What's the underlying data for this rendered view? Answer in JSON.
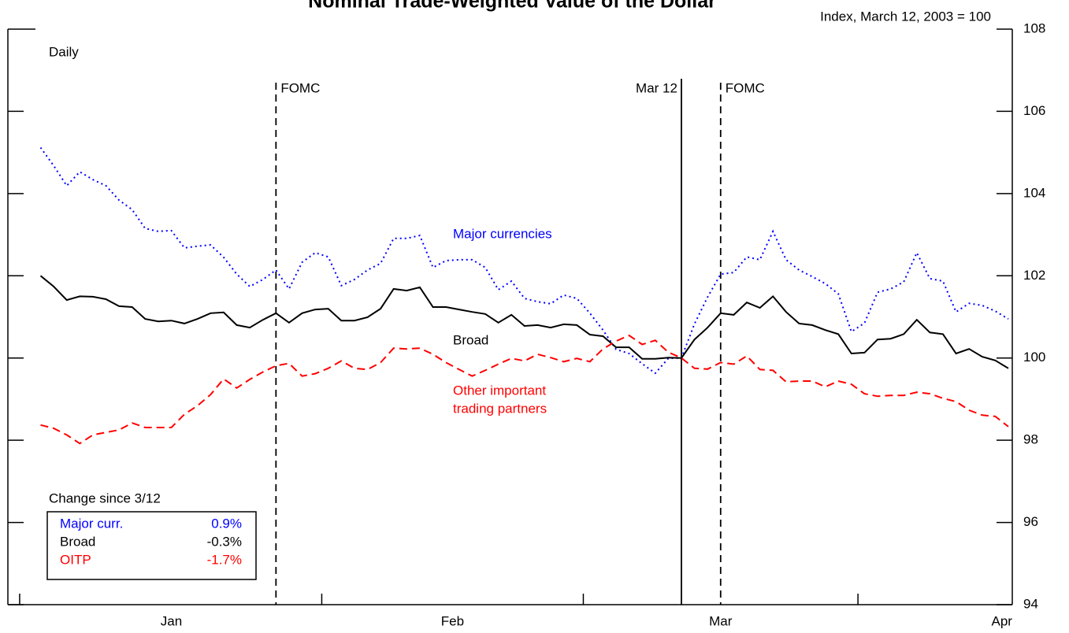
{
  "chart_data": {
    "type": "line",
    "title": "Nominal Trade-Weighted Value of the Dollar",
    "subtitle": "Daily",
    "y_axis_label": "Index, March 12, 2003 = 100",
    "x": [
      0,
      1,
      2,
      3,
      4,
      5,
      6,
      7,
      8,
      9,
      10,
      11,
      12,
      13,
      14,
      15,
      16,
      17,
      18,
      19,
      20,
      21,
      22,
      23,
      24,
      25,
      26,
      27,
      28,
      29,
      30,
      31,
      32,
      33,
      34,
      35,
      36,
      37,
      38,
      39,
      40,
      41,
      42,
      43,
      44,
      45,
      46,
      47,
      48,
      49,
      50,
      51,
      52,
      53,
      54,
      55,
      56,
      57,
      58,
      59,
      60,
      61,
      62,
      63,
      64,
      65,
      66,
      67,
      68,
      69,
      70,
      71,
      72,
      73,
      74
    ],
    "xlim": [
      -2.5,
      74.3
    ],
    "xticks": [
      -1.6,
      21.5,
      41.5,
      62.5
    ],
    "x_labels": [
      {
        "value": 10,
        "label": "Jan"
      },
      {
        "value": 31.5,
        "label": "Feb"
      },
      {
        "value": 52,
        "label": "Mar"
      },
      {
        "value": 73.5,
        "label": "Apr"
      }
    ],
    "ylim": [
      94,
      108
    ],
    "yticks": [
      94,
      96,
      98,
      100,
      102,
      104,
      106,
      108
    ],
    "events": [
      {
        "x": 18,
        "label": "FOMC",
        "style": "dashed",
        "label_side": "right"
      },
      {
        "x": 49,
        "label": "Mar 12",
        "style": "solid",
        "label_side": "left"
      },
      {
        "x": 52,
        "label": "FOMC",
        "style": "dashed",
        "label_side": "right"
      }
    ],
    "summary_title": "Change since 3/12",
    "series": [
      {
        "name": "Major curr.",
        "label_lines": [
          "Major currencies"
        ],
        "color": "#0000ff",
        "dash": "dotted",
        "change": 0.9,
        "change_label": "0.9%",
        "values": [
          105.12,
          104.68,
          104.19,
          104.53,
          104.34,
          104.19,
          103.84,
          103.61,
          103.15,
          103.08,
          103.1,
          102.68,
          102.72,
          102.75,
          102.45,
          102.04,
          101.74,
          101.91,
          102.14,
          101.68,
          102.33,
          102.56,
          102.46,
          101.76,
          101.91,
          102.14,
          102.3,
          102.91,
          102.91,
          102.98,
          102.2,
          102.37,
          102.39,
          102.39,
          102.2,
          101.66,
          101.87,
          101.45,
          101.37,
          101.32,
          101.53,
          101.45,
          101.09,
          100.68,
          100.21,
          100.11,
          99.86,
          99.63,
          99.99,
          100.0,
          100.83,
          101.48,
          102.04,
          102.08,
          102.46,
          102.39,
          103.08,
          102.39,
          102.14,
          101.98,
          101.81,
          101.56,
          100.64,
          100.85,
          101.6,
          101.68,
          101.85,
          102.56,
          101.93,
          101.87,
          101.12,
          101.33,
          101.28,
          101.14,
          100.95
        ]
      },
      {
        "name": "Broad",
        "label_lines": [
          "Broad"
        ],
        "color": "#000000",
        "dash": "solid",
        "change": -0.3,
        "change_label": "-0.3%",
        "values": [
          102.0,
          101.74,
          101.41,
          101.5,
          101.49,
          101.43,
          101.26,
          101.24,
          100.95,
          100.89,
          100.91,
          100.84,
          100.95,
          101.09,
          101.11,
          100.8,
          100.74,
          100.93,
          101.09,
          100.86,
          101.09,
          101.18,
          101.2,
          100.91,
          100.91,
          100.99,
          101.2,
          101.68,
          101.64,
          101.72,
          101.24,
          101.24,
          101.18,
          101.12,
          101.07,
          100.86,
          101.05,
          100.78,
          100.8,
          100.74,
          100.82,
          100.8,
          100.57,
          100.53,
          100.26,
          100.26,
          99.98,
          99.98,
          100.01,
          100.0,
          100.45,
          100.74,
          101.09,
          101.05,
          101.35,
          101.22,
          101.5,
          101.12,
          100.84,
          100.8,
          100.68,
          100.58,
          100.11,
          100.13,
          100.45,
          100.47,
          100.58,
          100.93,
          100.62,
          100.58,
          100.11,
          100.22,
          100.03,
          99.94,
          99.75
        ]
      },
      {
        "name": "OITP",
        "label_lines": [
          "Other important",
          "trading partners"
        ],
        "color": "#ff0000",
        "dash": "dashed",
        "change": -1.7,
        "change_label": "-1.7%",
        "values": [
          98.37,
          98.29,
          98.13,
          97.92,
          98.13,
          98.19,
          98.25,
          98.42,
          98.31,
          98.31,
          98.31,
          98.63,
          98.84,
          99.11,
          99.49,
          99.27,
          99.48,
          99.66,
          99.81,
          99.87,
          99.56,
          99.62,
          99.75,
          99.93,
          99.75,
          99.72,
          99.89,
          100.24,
          100.22,
          100.24,
          100.09,
          99.89,
          99.72,
          99.56,
          99.7,
          99.85,
          99.99,
          99.93,
          100.09,
          100.01,
          99.91,
          99.99,
          99.91,
          100.22,
          100.41,
          100.55,
          100.33,
          100.43,
          100.14,
          100.0,
          99.75,
          99.73,
          99.89,
          99.85,
          100.05,
          99.72,
          99.7,
          99.42,
          99.44,
          99.44,
          99.3,
          99.44,
          99.36,
          99.13,
          99.07,
          99.09,
          99.09,
          99.17,
          99.13,
          99.02,
          98.94,
          98.73,
          98.61,
          98.58,
          98.33
        ]
      }
    ]
  }
}
